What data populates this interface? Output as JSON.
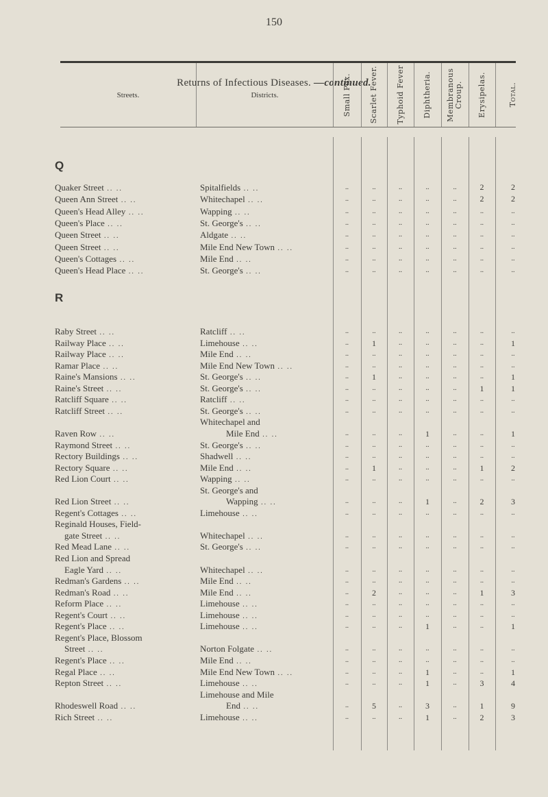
{
  "page_number": "150",
  "title": "Returns of Infectious Diseases.",
  "title_suffix": "—continued.",
  "headers": {
    "streets": "Streets.",
    "districts": "Districts.",
    "diseases": [
      "Small Pox.",
      "Scarlet Fever.",
      "Typhoid Fever",
      "Diphtheria.",
      "Membranous Croup.",
      "Erysipelas.",
      "Total."
    ]
  },
  "empty_mark": "..",
  "sections": [
    {
      "letter": "Q",
      "rows": [
        {
          "street": [
            "Quaker Street"
          ],
          "district": [
            "Spitalfields"
          ],
          "values": [
            null,
            null,
            null,
            null,
            null,
            2,
            2
          ]
        },
        {
          "street": [
            "Queen Ann Street"
          ],
          "district": [
            "Whitechapel"
          ],
          "values": [
            null,
            null,
            null,
            null,
            null,
            2,
            2
          ]
        },
        {
          "street": [
            "Queen's Head Alley"
          ],
          "district": [
            "Wapping"
          ],
          "values": [
            null,
            null,
            null,
            null,
            null,
            null,
            null
          ]
        },
        {
          "street": [
            "Queen's Place"
          ],
          "district": [
            "St. George's"
          ],
          "values": [
            null,
            null,
            null,
            null,
            null,
            null,
            null
          ]
        },
        {
          "street": [
            "Queen Street"
          ],
          "district": [
            "Aldgate"
          ],
          "values": [
            null,
            null,
            null,
            null,
            null,
            null,
            null
          ]
        },
        {
          "street": [
            "Queen Street"
          ],
          "district": [
            "Mile End New Town"
          ],
          "values": [
            null,
            null,
            null,
            null,
            null,
            null,
            null
          ]
        },
        {
          "street": [
            "Queen's Cottages"
          ],
          "district": [
            "Mile End"
          ],
          "values": [
            null,
            null,
            null,
            null,
            null,
            null,
            null
          ]
        },
        {
          "street": [
            "Queen's Head Place"
          ],
          "district": [
            "St. George's"
          ],
          "values": [
            null,
            null,
            null,
            null,
            null,
            null,
            null
          ]
        }
      ]
    },
    {
      "letter": "R",
      "rows": [
        {
          "street": [
            "Raby Street"
          ],
          "district": [
            "Ratcliff"
          ],
          "values": [
            null,
            null,
            null,
            null,
            null,
            null,
            null
          ]
        },
        {
          "street": [
            "Railway Place"
          ],
          "district": [
            "Limehouse"
          ],
          "values": [
            null,
            1,
            null,
            null,
            null,
            null,
            1
          ]
        },
        {
          "street": [
            "Railway Place"
          ],
          "district": [
            "Mile End"
          ],
          "values": [
            null,
            null,
            null,
            null,
            null,
            null,
            null
          ]
        },
        {
          "street": [
            "Ramar Place"
          ],
          "district": [
            "Mile End New Town"
          ],
          "values": [
            null,
            null,
            null,
            null,
            null,
            null,
            null
          ]
        },
        {
          "street": [
            "Raine's Mansions"
          ],
          "district": [
            "St. George's"
          ],
          "values": [
            null,
            1,
            null,
            null,
            null,
            null,
            1
          ]
        },
        {
          "street": [
            "Raine's Street"
          ],
          "district": [
            "St. George's"
          ],
          "values": [
            null,
            null,
            null,
            null,
            null,
            1,
            1
          ]
        },
        {
          "street": [
            "Ratcliff Square"
          ],
          "district": [
            "Ratcliff"
          ],
          "values": [
            null,
            null,
            null,
            null,
            null,
            null,
            null
          ]
        },
        {
          "street": [
            "Ratcliff Street"
          ],
          "district": [
            "St. George's"
          ],
          "values": [
            null,
            null,
            null,
            null,
            null,
            null,
            null
          ]
        },
        {
          "street": [
            "Raven Row"
          ],
          "district": [
            "Whitechapel and",
            "Mile End"
          ],
          "values": [
            null,
            null,
            null,
            1,
            null,
            null,
            1
          ]
        },
        {
          "street": [
            "Raymond Street"
          ],
          "district": [
            "St. George's"
          ],
          "values": [
            null,
            null,
            null,
            null,
            null,
            null,
            null
          ]
        },
        {
          "street": [
            "Rectory Buildings"
          ],
          "district": [
            "Shadwell"
          ],
          "values": [
            null,
            null,
            null,
            null,
            null,
            null,
            null
          ]
        },
        {
          "street": [
            "Rectory Square"
          ],
          "district": [
            "Mile End"
          ],
          "values": [
            null,
            1,
            null,
            null,
            null,
            1,
            2
          ]
        },
        {
          "street": [
            "Red Lion Court"
          ],
          "district": [
            "Wapping"
          ],
          "values": [
            null,
            null,
            null,
            null,
            null,
            null,
            null
          ]
        },
        {
          "street": [
            "Red Lion Street"
          ],
          "district": [
            "St. George's and",
            "Wapping"
          ],
          "values": [
            null,
            null,
            null,
            1,
            null,
            2,
            3
          ]
        },
        {
          "street": [
            "Regent's Cottages"
          ],
          "district": [
            "Limehouse"
          ],
          "values": [
            null,
            null,
            null,
            null,
            null,
            null,
            null
          ]
        },
        {
          "street": [
            "Reginald Houses, Field-",
            "gate Street"
          ],
          "district": [
            "Whitechapel"
          ],
          "values": [
            null,
            null,
            null,
            null,
            null,
            null,
            null
          ]
        },
        {
          "street": [
            "Red Mead Lane"
          ],
          "district": [
            "St. George's"
          ],
          "values": [
            null,
            null,
            null,
            null,
            null,
            null,
            null
          ]
        },
        {
          "street": [
            "Red Lion and Spread",
            "Eagle Yard"
          ],
          "district": [
            "Whitechapel"
          ],
          "values": [
            null,
            null,
            null,
            null,
            null,
            null,
            null
          ]
        },
        {
          "street": [
            "Redman's Gardens"
          ],
          "district": [
            "Mile End"
          ],
          "values": [
            null,
            null,
            null,
            null,
            null,
            null,
            null
          ]
        },
        {
          "street": [
            "Redman's Road"
          ],
          "district": [
            "Mile End"
          ],
          "values": [
            null,
            2,
            null,
            null,
            null,
            1,
            3
          ]
        },
        {
          "street": [
            "Reform Place"
          ],
          "district": [
            "Limehouse"
          ],
          "values": [
            null,
            null,
            null,
            null,
            null,
            null,
            null
          ]
        },
        {
          "street": [
            "Regent's Court"
          ],
          "district": [
            "Limehouse"
          ],
          "values": [
            null,
            null,
            null,
            null,
            null,
            null,
            null
          ]
        },
        {
          "street": [
            "Regent's Place"
          ],
          "district": [
            "Limehouse"
          ],
          "values": [
            null,
            null,
            null,
            1,
            null,
            null,
            1
          ]
        },
        {
          "street": [
            "Regent's Place, Blossom",
            "Street"
          ],
          "district": [
            "Norton Folgate"
          ],
          "values": [
            null,
            null,
            null,
            null,
            null,
            null,
            null
          ]
        },
        {
          "street": [
            "Regent's Place"
          ],
          "district": [
            "Mile End"
          ],
          "values": [
            null,
            null,
            null,
            null,
            null,
            null,
            null
          ]
        },
        {
          "street": [
            "Regal Place"
          ],
          "district": [
            "Mile End New Town"
          ],
          "values": [
            null,
            null,
            null,
            1,
            null,
            null,
            1
          ]
        },
        {
          "street": [
            "Repton Street"
          ],
          "district": [
            "Limehouse"
          ],
          "values": [
            null,
            null,
            null,
            1,
            null,
            3,
            4
          ]
        },
        {
          "street": [
            "Rhodeswell Road"
          ],
          "district": [
            "Limehouse and Mile",
            "End"
          ],
          "values": [
            null,
            5,
            null,
            3,
            null,
            1,
            9
          ]
        },
        {
          "street": [
            "Rich Street"
          ],
          "district": [
            "Limehouse"
          ],
          "values": [
            null,
            null,
            null,
            1,
            null,
            2,
            3
          ]
        }
      ]
    }
  ]
}
